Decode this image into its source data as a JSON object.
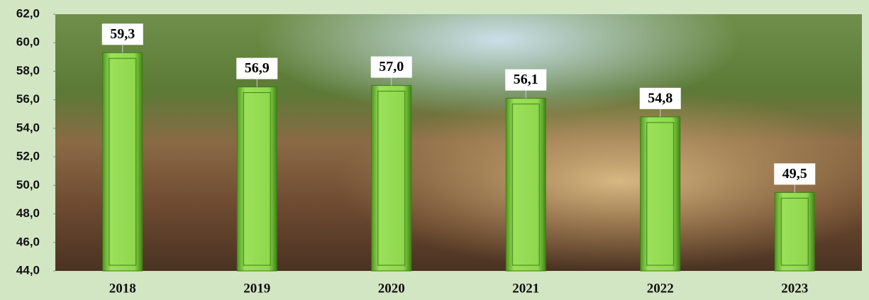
{
  "chart_data": {
    "type": "bar",
    "categories": [
      "2018",
      "2019",
      "2020",
      "2021",
      "2022",
      "2023"
    ],
    "values": [
      59.3,
      56.9,
      57.0,
      56.1,
      54.8,
      49.5
    ],
    "value_labels": [
      "59,3",
      "56,9",
      "57,0",
      "56,1",
      "54,8",
      "49,5"
    ],
    "color": "#7ccf3c",
    "ylim": [
      44,
      62
    ],
    "yticks": [
      {
        "value": 44,
        "label": "44,0"
      },
      {
        "value": 46,
        "label": "46,0"
      },
      {
        "value": 48,
        "label": "48,0"
      },
      {
        "value": 50,
        "label": "50,0"
      },
      {
        "value": 52,
        "label": "52,0"
      },
      {
        "value": 54,
        "label": "54,0"
      },
      {
        "value": 56,
        "label": "56,0"
      },
      {
        "value": 58,
        "label": "58,0"
      },
      {
        "value": 60,
        "label": "60,0"
      },
      {
        "value": 62,
        "label": "62,0"
      }
    ]
  }
}
